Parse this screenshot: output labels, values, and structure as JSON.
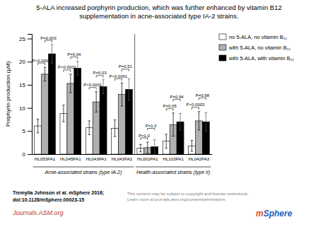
{
  "chart_data": {
    "type": "bar",
    "title": "5-ALA increased porphyrin production, which was further enhanced by vitamin B12\nsupplementation in acne-associated type IA-2 strains.",
    "ylabel": "Porphyrin production (μM)",
    "categories": [
      "HL053PA1",
      "HL045PA1",
      "HL043PA1",
      "HL043PA2",
      "HL001PA1",
      "HL103PA1",
      "HL042PA3"
    ],
    "series": [
      {
        "name": "no 5-ALA, no vitamin B₁₂",
        "color": "white",
        "values": [
          6.1,
          8.8,
          5.7,
          5.6,
          1.3,
          2.8,
          1.8
        ],
        "errors": [
          1.5,
          1.8,
          1.5,
          1.8,
          0.8,
          1.5,
          1.2
        ]
      },
      {
        "name": "with 5-ALA, no vitamin B₁₂",
        "color": "#b0b0b0",
        "values": [
          17.3,
          15.3,
          11.3,
          12.9,
          1.4,
          6.4,
          7.2
        ],
        "errors": [
          1.5,
          2.0,
          2.2,
          2.5,
          1.2,
          2.5,
          2.0
        ]
      },
      {
        "name": "with 5-ALA, with vitamin B₁₂",
        "color": "black",
        "values": [
          21.7,
          18.6,
          14.6,
          14.0,
          1.6,
          7.0,
          7.0
        ],
        "errors": [
          2.0,
          1.5,
          1.5,
          2.3,
          1.5,
          1.8,
          2.0
        ]
      }
    ],
    "ylim": [
      0,
      26
    ],
    "yticks": [
      0,
      5,
      10,
      15,
      20,
      25
    ],
    "grid": false,
    "legend": "right",
    "category_groups": [
      {
        "label": "Acne-associated strains (type IA-2)",
        "categories": [
          "HL053PA1",
          "HL045PA1",
          "HL043PA1",
          "HL043PA2"
        ]
      },
      {
        "label": "Health-associated strains (type II)",
        "categories": [
          "HL001PA1",
          "HL103PA1",
          "HL042PA3"
        ]
      }
    ],
    "comparisons": [
      {
        "category": "HL053PA1",
        "between": [
          "no 5-ALA, no vitamin B₁₂",
          "with 5-ALA, no vitamin B₁₂"
        ],
        "label": "P<0.0001"
      },
      {
        "category": "HL053PA1",
        "between": [
          "with 5-ALA, no vitamin B₁₂",
          "with 5-ALA, with vitamin B₁₂"
        ],
        "label": "P=0.003"
      },
      {
        "category": "HL045PA1",
        "between": [
          "no 5-ALA, no vitamin B₁₂",
          "with 5-ALA, no vitamin B₁₂"
        ],
        "label": "P<0.0001"
      },
      {
        "category": "HL045PA1",
        "between": [
          "with 5-ALA, no vitamin B₁₂",
          "with 5-ALA, with vitamin B₁₂"
        ],
        "label": "P=0.04"
      },
      {
        "category": "HL043PA1",
        "between": [
          "no 5-ALA, no vitamin B₁₂",
          "with 5-ALA, no vitamin B₁₂"
        ],
        "label": "P<0.0001"
      },
      {
        "category": "HL043PA1",
        "between": [
          "with 5-ALA, no vitamin B₁₂",
          "with 5-ALA, with vitamin B₁₂"
        ],
        "label": "P=0.03"
      },
      {
        "category": "HL043PA2",
        "between": [
          "no 5-ALA, no vitamin B₁₂",
          "with 5-ALA, no vitamin B₁₂"
        ],
        "label": "P<0.0001"
      },
      {
        "category": "HL043PA2",
        "between": [
          "with 5-ALA, no vitamin B₁₂",
          "with 5-ALA, with vitamin B₁₂"
        ],
        "label": "P=0.51"
      },
      {
        "category": "HL001PA1",
        "between": [
          "no 5-ALA, no vitamin B₁₂",
          "with 5-ALA, no vitamin B₁₂"
        ],
        "label": "P=1.0"
      },
      {
        "category": "HL001PA1",
        "between": [
          "with 5-ALA, no vitamin B₁₂",
          "with 5-ALA, with vitamin B₁₂"
        ],
        "label": "P=1.0"
      },
      {
        "category": "HL103PA1",
        "between": [
          "no 5-ALA, no vitamin B₁₂",
          "with 5-ALA, no vitamin B₁₂"
        ],
        "label": "P=0.05"
      },
      {
        "category": "HL103PA1",
        "between": [
          "with 5-ALA, no vitamin B₁₂",
          "with 5-ALA, with vitamin B₁₂"
        ],
        "label": "P=0.94"
      },
      {
        "category": "HL042PA3",
        "between": [
          "no 5-ALA, no vitamin B₁₂",
          "with 5-ALA, no vitamin B₁₂"
        ],
        "label": "P<0.0003"
      },
      {
        "category": "HL042PA3",
        "between": [
          "with 5-ALA, no vitamin B₁₂",
          "with 5-ALA, with vitamin B₁₂"
        ],
        "label": "P=0.98"
      }
    ],
    "footer": {
      "citation": [
        "Tremylla Johnson et al. mSphere 2016;",
        "doi:10.1128/mSphere.00023-15"
      ],
      "journal": {
        "text": "Journals.ASM.org",
        "color": "#c0392b"
      },
      "notice": {
        "text": "This content may be subject to copyright and license restrictions.\nLearn more at journals.asm.org/content/permissions",
        "color": "gray"
      },
      "logo": [
        {
          "text": "m",
          "color": "#e05020"
        },
        {
          "text": "Sphere",
          "color": "#2060c0"
        }
      ]
    }
  }
}
